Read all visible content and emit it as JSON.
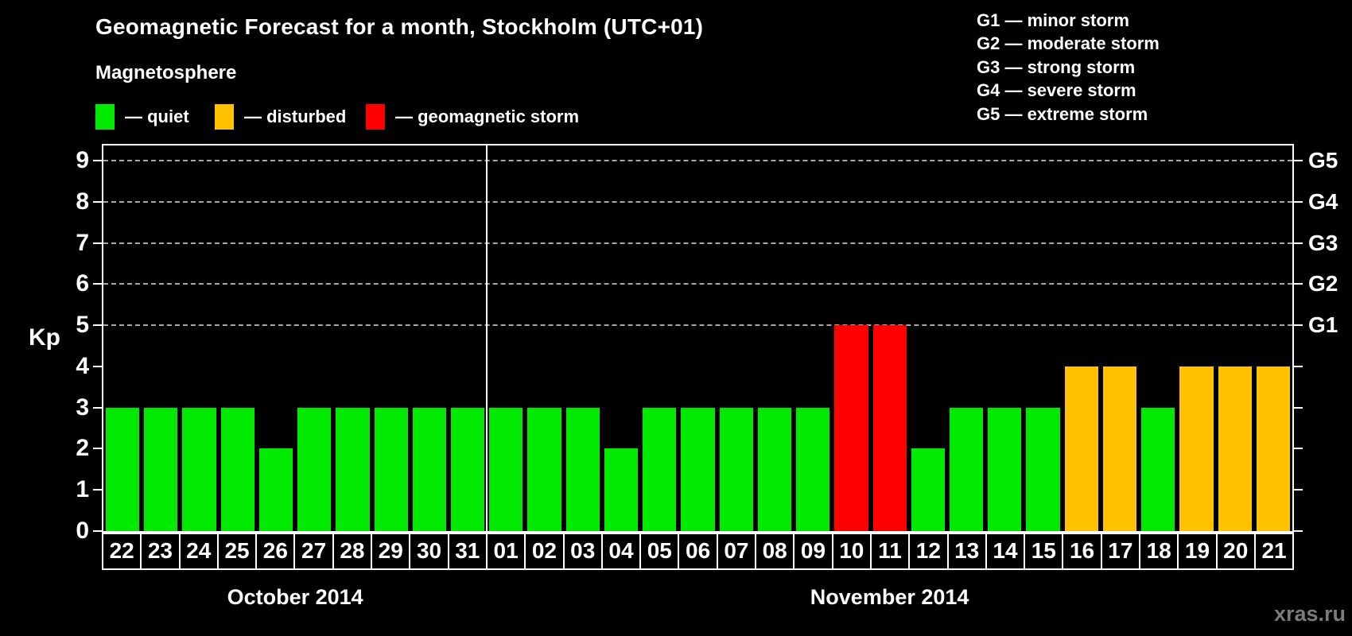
{
  "page": {
    "background": "#000000",
    "watermark": "xras.ru"
  },
  "header": {
    "title": "Geomagnetic Forecast for a month, Stockholm (UTC+01)"
  },
  "legend": {
    "heading": "Magnetosphere",
    "items": [
      {
        "key": "quiet",
        "label": "— quiet",
        "color": "#00ea00"
      },
      {
        "key": "disturbed",
        "label": "— disturbed",
        "color": "#ffc100"
      },
      {
        "key": "storm",
        "label": "— geomagnetic storm",
        "color": "#ff0000"
      }
    ]
  },
  "g_scale_legend": {
    "items": [
      "G1 — minor storm",
      "G2 — moderate storm",
      "G3 — strong storm",
      "G4 — severe storm",
      "G5 — extreme storm"
    ]
  },
  "chart_data": {
    "type": "bar",
    "title": "Geomagnetic Forecast for a month, Stockholm (UTC+01)",
    "ylabel": "Kp",
    "ylim": [
      0,
      9.37
    ],
    "yticks": [
      0,
      1,
      2,
      3,
      4,
      5,
      6,
      7,
      8,
      9
    ],
    "gridlines_at_kp": [
      5,
      6,
      7,
      8,
      9
    ],
    "grid_style": "dashed-horizontal",
    "right_axis_labels": [
      {
        "kp": 5,
        "label": "G1"
      },
      {
        "kp": 6,
        "label": "G2"
      },
      {
        "kp": 7,
        "label": "G3"
      },
      {
        "kp": 8,
        "label": "G4"
      },
      {
        "kp": 9,
        "label": "G5"
      }
    ],
    "months": [
      {
        "label": "October 2014",
        "num_days": 10
      },
      {
        "label": "November 2014",
        "num_days": 21
      }
    ],
    "bars": [
      {
        "month": "October 2014",
        "day": "22",
        "kp": 3,
        "status": "quiet"
      },
      {
        "month": "October 2014",
        "day": "23",
        "kp": 3,
        "status": "quiet"
      },
      {
        "month": "October 2014",
        "day": "24",
        "kp": 3,
        "status": "quiet"
      },
      {
        "month": "October 2014",
        "day": "25",
        "kp": 3,
        "status": "quiet"
      },
      {
        "month": "October 2014",
        "day": "26",
        "kp": 2,
        "status": "quiet"
      },
      {
        "month": "October 2014",
        "day": "27",
        "kp": 3,
        "status": "quiet"
      },
      {
        "month": "October 2014",
        "day": "28",
        "kp": 3,
        "status": "quiet"
      },
      {
        "month": "October 2014",
        "day": "29",
        "kp": 3,
        "status": "quiet"
      },
      {
        "month": "October 2014",
        "day": "30",
        "kp": 3,
        "status": "quiet"
      },
      {
        "month": "October 2014",
        "day": "31",
        "kp": 3,
        "status": "quiet"
      },
      {
        "month": "November 2014",
        "day": "01",
        "kp": 3,
        "status": "quiet"
      },
      {
        "month": "November 2014",
        "day": "02",
        "kp": 3,
        "status": "quiet"
      },
      {
        "month": "November 2014",
        "day": "03",
        "kp": 3,
        "status": "quiet"
      },
      {
        "month": "November 2014",
        "day": "04",
        "kp": 2,
        "status": "quiet"
      },
      {
        "month": "November 2014",
        "day": "05",
        "kp": 3,
        "status": "quiet"
      },
      {
        "month": "November 2014",
        "day": "06",
        "kp": 3,
        "status": "quiet"
      },
      {
        "month": "November 2014",
        "day": "07",
        "kp": 3,
        "status": "quiet"
      },
      {
        "month": "November 2014",
        "day": "08",
        "kp": 3,
        "status": "quiet"
      },
      {
        "month": "November 2014",
        "day": "09",
        "kp": 3,
        "status": "quiet"
      },
      {
        "month": "November 2014",
        "day": "10",
        "kp": 5,
        "status": "storm"
      },
      {
        "month": "November 2014",
        "day": "11",
        "kp": 5,
        "status": "storm"
      },
      {
        "month": "November 2014",
        "day": "12",
        "kp": 2,
        "status": "quiet"
      },
      {
        "month": "November 2014",
        "day": "13",
        "kp": 3,
        "status": "quiet"
      },
      {
        "month": "November 2014",
        "day": "14",
        "kp": 3,
        "status": "quiet"
      },
      {
        "month": "November 2014",
        "day": "15",
        "kp": 3,
        "status": "quiet"
      },
      {
        "month": "November 2014",
        "day": "16",
        "kp": 4,
        "status": "disturbed"
      },
      {
        "month": "November 2014",
        "day": "17",
        "kp": 4,
        "status": "disturbed"
      },
      {
        "month": "November 2014",
        "day": "18",
        "kp": 3,
        "status": "quiet"
      },
      {
        "month": "November 2014",
        "day": "19",
        "kp": 4,
        "status": "disturbed"
      },
      {
        "month": "November 2014",
        "day": "20",
        "kp": 4,
        "status": "disturbed"
      },
      {
        "month": "November 2014",
        "day": "21",
        "kp": 4,
        "status": "disturbed"
      }
    ]
  }
}
